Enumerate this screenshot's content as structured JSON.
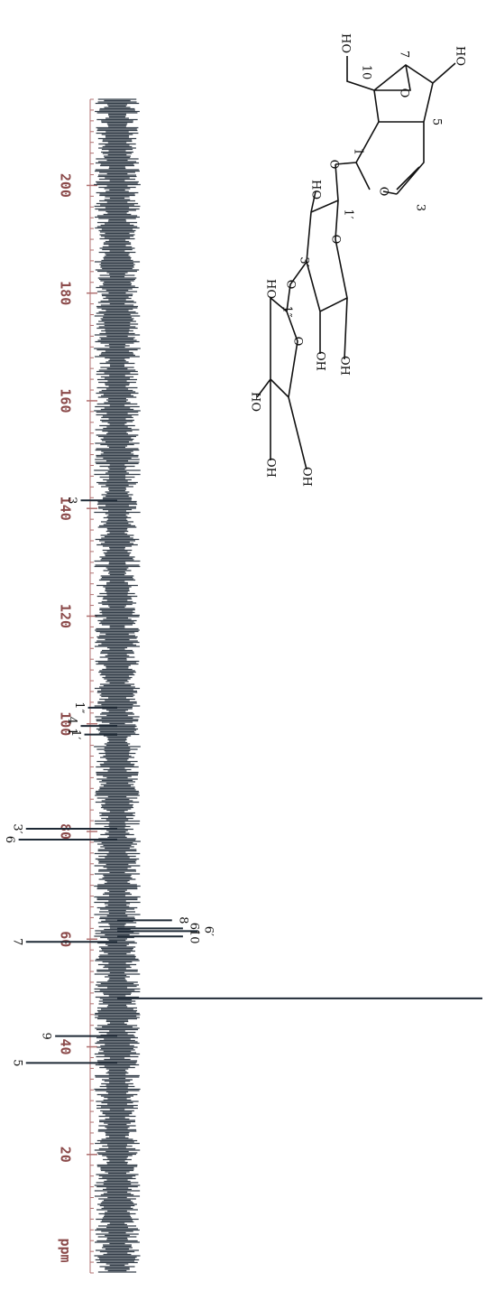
{
  "chart_data": {
    "type": "spectrum",
    "xlabel": "ppm",
    "xlim": [
      216,
      -2
    ],
    "xticks": [
      200,
      180,
      160,
      140,
      120,
      100,
      80,
      60,
      40,
      20
    ],
    "color": "#1f2a36",
    "peaks": [
      {
        "ppm": 141.5,
        "intensity": -10,
        "label": "3"
      },
      {
        "ppm": 103,
        "intensity": -8,
        "label": "1″"
      },
      {
        "ppm": 99.6,
        "intensity": -10,
        "label": "4 1"
      },
      {
        "ppm": 98,
        "intensity": -9,
        "label": "1′"
      },
      {
        "ppm": 80.5,
        "intensity": -25,
        "label": "3′"
      },
      {
        "ppm": 78.5,
        "intensity": -27,
        "label": "6"
      },
      {
        "ppm": 63.5,
        "intensity": 15,
        "label": "8"
      },
      {
        "ppm": 62,
        "intensity": 18,
        "label": "6″"
      },
      {
        "ppm": 61.5,
        "intensity": 22,
        "label": "6′"
      },
      {
        "ppm": 60.5,
        "intensity": 18,
        "label": "10"
      },
      {
        "ppm": 59.5,
        "intensity": -25,
        "label": "7"
      },
      {
        "ppm": 49,
        "intensity": 100
      },
      {
        "ppm": 42,
        "intensity": -17,
        "label": "9"
      },
      {
        "ppm": 37,
        "intensity": -25,
        "label": "5"
      }
    ]
  },
  "structure": {
    "atoms": [
      "HO",
      "10",
      "7",
      "O",
      "HO",
      "5",
      "1",
      "O",
      "3",
      "O",
      "HO",
      "1′",
      "O",
      "3′",
      "O",
      "1″",
      "HO",
      "OH",
      "OH",
      "HO",
      "OH",
      "OH",
      "O"
    ]
  }
}
